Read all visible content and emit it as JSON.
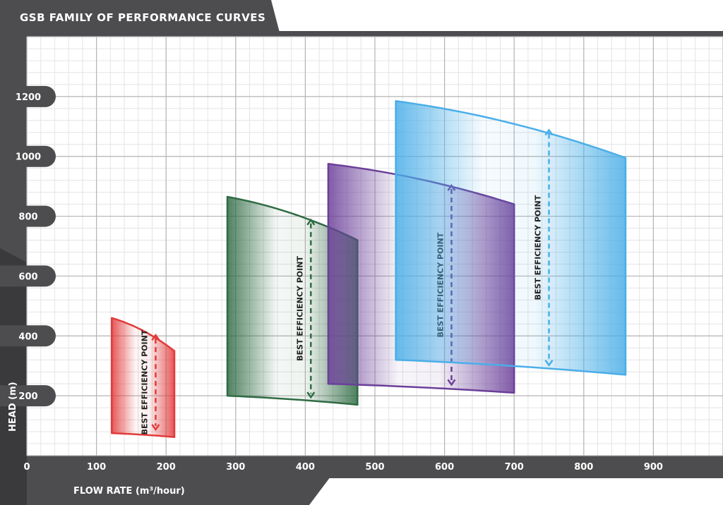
{
  "chart_data": {
    "type": "area",
    "title": "GSB FAMILY OF PERFORMANCE CURVES",
    "xlabel": "FLOW RATE (m³/hour)",
    "ylabel": "HEAD (m)",
    "xlim": [
      0,
      1000
    ],
    "ylim": [
      0,
      1400
    ],
    "x_ticks": [
      0,
      100,
      200,
      300,
      400,
      500,
      600,
      700,
      800,
      900
    ],
    "y_ticks": [
      200,
      400,
      600,
      800,
      1000,
      1200
    ],
    "grid": true,
    "minor_grid": true,
    "series": [
      {
        "color": "#e23a3a",
        "flow_min": 122,
        "flow_max": 212,
        "head_top_start": 460,
        "head_top_end": 350,
        "head_bottom_start": 75,
        "head_bottom_end": 62,
        "bep_flow": 185,
        "bep_head_top": 405,
        "bep_head_bottom": 85,
        "bep_label": "BEST EFFICIENCY POINT"
      },
      {
        "color": "#2f6b43",
        "flow_min": 288,
        "flow_max": 475,
        "head_top_start": 865,
        "head_top_end": 720,
        "head_bottom_start": 200,
        "head_bottom_end": 170,
        "bep_flow": 408,
        "bep_head_top": 790,
        "bep_head_bottom": 193,
        "bep_label": "BEST EFFICIENCY POINT"
      },
      {
        "color": "#6b3f99",
        "flow_min": 433,
        "flow_max": 700,
        "head_top_start": 975,
        "head_top_end": 840,
        "head_bottom_start": 240,
        "head_bottom_end": 210,
        "bep_flow": 610,
        "bep_head_top": 905,
        "bep_head_bottom": 235,
        "bep_label": "BEST EFFICIENCY POINT"
      },
      {
        "color": "#4aaee8",
        "flow_min": 530,
        "flow_max": 860,
        "head_top_start": 1185,
        "head_top_end": 995,
        "head_bottom_start": 320,
        "head_bottom_end": 270,
        "bep_flow": 750,
        "bep_head_top": 1090,
        "bep_head_bottom": 300,
        "bep_label": "BEST EFFICIENCY POINT"
      }
    ]
  },
  "colors": {
    "frame": "#4d4d4f",
    "grid_major": "#b5b5b5",
    "grid_minor": "#e4e4e4"
  }
}
